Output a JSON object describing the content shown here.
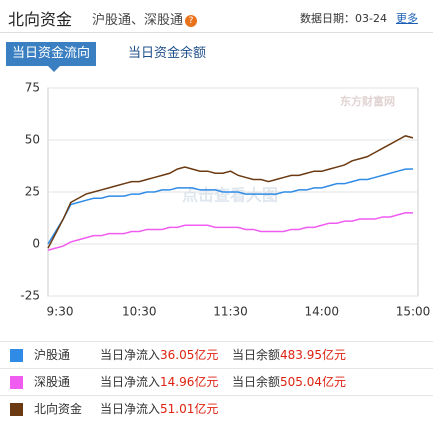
{
  "header": {
    "title": "北向资金",
    "subtitle": "沪股通、深股通",
    "date": "数据日期：03-24",
    "more": "更多"
  },
  "tabs": [
    "当日资金流向",
    "当日资金余额"
  ],
  "chart_data": {
    "type": "line",
    "watermark": "东方财富网",
    "annotation": "点击查看大图",
    "categories": [
      "9:30",
      null,
      null,
      null,
      null,
      null,
      null,
      null,
      null,
      null,
      null,
      null,
      "10:30",
      null,
      null,
      null,
      null,
      null,
      null,
      null,
      null,
      null,
      null,
      null,
      "11:30",
      null,
      null,
      null,
      null,
      null,
      null,
      null,
      null,
      null,
      null,
      null,
      "14:00",
      null,
      null,
      null,
      null,
      null,
      null,
      null,
      null,
      null,
      null,
      null,
      "15:00"
    ],
    "ylim": [
      -25,
      75
    ],
    "yticks": [
      -25,
      0,
      25,
      50,
      75
    ],
    "grid": true,
    "series": [
      {
        "name": "沪股通",
        "color": "#2f8be6",
        "values": [
          0,
          6,
          12,
          19,
          20,
          21,
          22,
          22,
          23,
          23,
          23,
          24,
          24,
          25,
          25,
          26,
          26,
          27,
          27,
          27,
          26,
          26,
          26,
          25,
          25,
          25,
          24,
          24,
          24,
          24,
          24,
          25,
          25,
          26,
          26,
          27,
          27,
          28,
          29,
          29,
          30,
          31,
          31,
          32,
          33,
          34,
          35,
          36,
          36.05
        ]
      },
      {
        "name": "深股通",
        "color": "#f05cf0",
        "values": [
          -3,
          -2,
          -1,
          1,
          2,
          3,
          4,
          4,
          5,
          5,
          5,
          6,
          6,
          7,
          7,
          7,
          8,
          8,
          9,
          9,
          9,
          9,
          8,
          8,
          8,
          8,
          7,
          7,
          6,
          6,
          6,
          6,
          7,
          7,
          8,
          8,
          9,
          10,
          10,
          11,
          11,
          12,
          12,
          12,
          13,
          13,
          14,
          15,
          14.96
        ]
      },
      {
        "name": "北向资金",
        "color": "#6b3a12",
        "values": [
          -2,
          5,
          12,
          20,
          22,
          24,
          25,
          26,
          27,
          28,
          29,
          30,
          30,
          31,
          32,
          33,
          34,
          36,
          37,
          36,
          35,
          35,
          34,
          34,
          35,
          33,
          32,
          31,
          31,
          30,
          31,
          32,
          33,
          33,
          34,
          35,
          35,
          36,
          37,
          38,
          40,
          41,
          42,
          44,
          46,
          48,
          50,
          52,
          51.01
        ]
      }
    ]
  },
  "summary": {
    "net_label": "当日净流入",
    "balance_label": "当日余额",
    "rows": [
      {
        "net": "36.05亿元",
        "balance": "483.95亿元"
      },
      {
        "net": "14.96亿元",
        "balance": "505.04亿元"
      },
      {
        "net": "51.01亿元",
        "balance": ""
      }
    ]
  }
}
